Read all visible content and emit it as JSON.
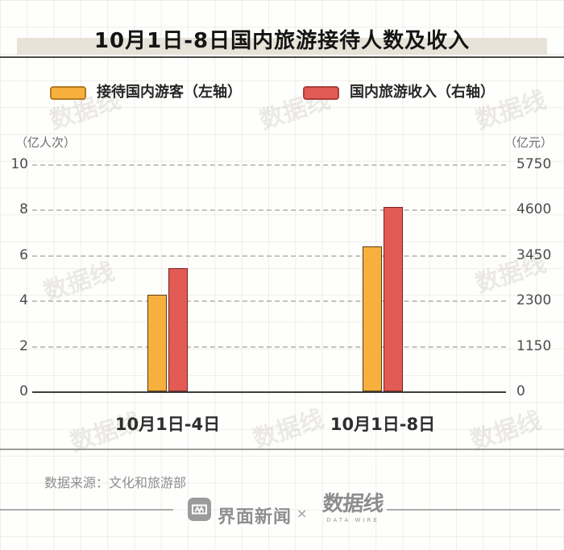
{
  "title": "10月1日-8日国内旅游接待人数及收入",
  "legend": [
    {
      "label": "接待国内游客（左轴）",
      "color": "#f7b03d",
      "border": "#b57b1e"
    },
    {
      "label": "国内旅游收入（右轴）",
      "color": "#e25b54",
      "border": "#a93f3a"
    }
  ],
  "axes": {
    "left_unit": "（亿人次）",
    "right_unit": "（亿元）",
    "left_ticks": [
      "10",
      "8",
      "6",
      "4",
      "2",
      "0"
    ],
    "right_ticks": [
      "5750",
      "4600",
      "3450",
      "2300",
      "1150",
      "0"
    ]
  },
  "chart_data": {
    "type": "bar",
    "title": "10月1日-8日国内旅游接待人数及收入",
    "categories": [
      "10月1日-4日",
      "10月1日-8日"
    ],
    "series": [
      {
        "name": "接待国内游客（左轴）",
        "axis": "left",
        "values": [
          4.25,
          6.37
        ],
        "color": "#f7b03d",
        "border": "#5a3d10"
      },
      {
        "name": "国内旅游收入（右轴）",
        "axis": "right",
        "values": [
          3120,
          4666
        ],
        "color": "#e25b54",
        "border": "#7a2420"
      }
    ],
    "left_axis": {
      "label": "（亿人次）",
      "range": [
        0,
        10
      ],
      "ticks": [
        0,
        2,
        4,
        6,
        8,
        10
      ]
    },
    "right_axis": {
      "label": "（亿元）",
      "range": [
        0,
        5750
      ],
      "ticks": [
        0,
        1150,
        2300,
        3450,
        4600,
        5750
      ]
    },
    "grid": "horizontal-dashed",
    "legend_position": "top"
  },
  "footer": {
    "source": "数据来源：文化和旅游部",
    "brand_left": "界面新闻",
    "separator": "×",
    "brand_right": "数据线",
    "brand_right_sub": "DATA WIRE"
  },
  "watermark": "数据线"
}
